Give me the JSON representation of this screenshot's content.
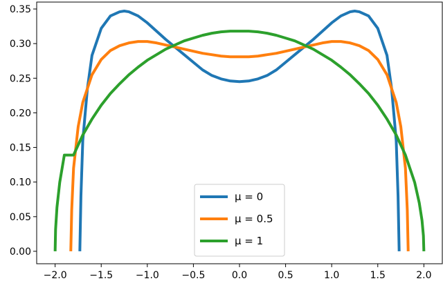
{
  "chart_data": {
    "type": "line",
    "title": "",
    "xlabel": "",
    "ylabel": "",
    "xlim": [
      -2.2,
      2.2
    ],
    "ylim": [
      -0.018,
      0.36
    ],
    "x_ticks": [
      -2.0,
      -1.5,
      -1.0,
      -0.5,
      0.0,
      0.5,
      1.0,
      1.5,
      2.0
    ],
    "x_tick_labels": [
      "−2.0",
      "−1.5",
      "−1.0",
      "−0.5",
      "0.0",
      "0.5",
      "1.0",
      "1.5",
      "2.0"
    ],
    "y_ticks": [
      0.0,
      0.05,
      0.1,
      0.15,
      0.2,
      0.25,
      0.3,
      0.35
    ],
    "y_tick_labels": [
      "0.00",
      "0.05",
      "0.10",
      "0.15",
      "0.20",
      "0.25",
      "0.30",
      "0.35"
    ],
    "grid": false,
    "legend_position": "bottom-center",
    "series": [
      {
        "name": "μ = 0",
        "color": "#1f77b4",
        "x": [
          -1.732,
          -1.72,
          -1.7,
          -1.65,
          -1.6,
          -1.5,
          -1.4,
          -1.3,
          -1.25,
          -1.2,
          -1.1,
          -1.0,
          -0.9,
          -0.8,
          -0.7,
          -0.6,
          -0.5,
          -0.4,
          -0.3,
          -0.2,
          -0.1,
          0.0,
          0.1,
          0.2,
          0.3,
          0.4,
          0.5,
          0.6,
          0.7,
          0.8,
          0.9,
          1.0,
          1.1,
          1.2,
          1.25,
          1.3,
          1.4,
          1.5,
          1.6,
          1.65,
          1.7,
          1.72,
          1.732
        ],
        "y": [
          0.0,
          0.08,
          0.16,
          0.235,
          0.283,
          0.322,
          0.34,
          0.346,
          0.347,
          0.346,
          0.34,
          0.33,
          0.318,
          0.306,
          0.295,
          0.284,
          0.273,
          0.262,
          0.254,
          0.249,
          0.246,
          0.245,
          0.246,
          0.249,
          0.254,
          0.262,
          0.273,
          0.284,
          0.295,
          0.306,
          0.318,
          0.33,
          0.34,
          0.346,
          0.347,
          0.346,
          0.34,
          0.322,
          0.283,
          0.235,
          0.16,
          0.08,
          0.0
        ]
      },
      {
        "name": "μ = 0.5",
        "color": "#ff7f0e",
        "x": [
          -1.83,
          -1.82,
          -1.8,
          -1.75,
          -1.7,
          -1.6,
          -1.5,
          -1.4,
          -1.3,
          -1.2,
          -1.1,
          -1.0,
          -0.9,
          -0.8,
          -0.7,
          -0.6,
          -0.5,
          -0.4,
          -0.3,
          -0.2,
          -0.1,
          0.0,
          0.1,
          0.2,
          0.3,
          0.4,
          0.5,
          0.6,
          0.7,
          0.8,
          0.9,
          1.0,
          1.1,
          1.2,
          1.3,
          1.4,
          1.5,
          1.6,
          1.7,
          1.75,
          1.8,
          1.82,
          1.83
        ],
        "y": [
          0.0,
          0.06,
          0.12,
          0.18,
          0.215,
          0.255,
          0.277,
          0.29,
          0.297,
          0.301,
          0.303,
          0.303,
          0.301,
          0.298,
          0.295,
          0.292,
          0.289,
          0.286,
          0.284,
          0.282,
          0.281,
          0.281,
          0.281,
          0.282,
          0.284,
          0.286,
          0.289,
          0.292,
          0.295,
          0.298,
          0.301,
          0.303,
          0.303,
          0.301,
          0.297,
          0.29,
          0.277,
          0.255,
          0.215,
          0.18,
          0.12,
          0.06,
          0.0
        ]
      },
      {
        "name": "μ = 1",
        "color": "#2ca02c",
        "x": [
          -2.0,
          -1.995,
          -1.98,
          -1.95,
          -1.9,
          -1.8,
          -1.7,
          -1.6,
          -1.5,
          -1.4,
          -1.3,
          -1.2,
          -1.1,
          -1.0,
          -0.9,
          -0.8,
          -0.7,
          -0.6,
          -0.5,
          -0.4,
          -0.3,
          -0.2,
          -0.1,
          0.0,
          0.1,
          0.2,
          0.3,
          0.4,
          0.5,
          0.6,
          0.7,
          0.8,
          0.9,
          1.0,
          1.1,
          1.2,
          1.3,
          1.4,
          1.5,
          1.6,
          1.7,
          1.8,
          1.9,
          1.95,
          1.98,
          1.995,
          2.0
        ],
        "y": [
          0.0,
          0.0318,
          0.0635,
          0.0996,
          0.139,
          0.139,
          0.168,
          0.191,
          0.211,
          0.228,
          0.242,
          0.255,
          0.266,
          0.276,
          0.284,
          0.292,
          0.298,
          0.304,
          0.308,
          0.312,
          0.315,
          0.317,
          0.318,
          0.318,
          0.318,
          0.317,
          0.315,
          0.312,
          0.308,
          0.304,
          0.298,
          0.292,
          0.284,
          0.276,
          0.266,
          0.255,
          0.242,
          0.228,
          0.211,
          0.191,
          0.168,
          0.139,
          0.0996,
          0.07,
          0.0444,
          0.0225,
          0.0
        ]
      }
    ]
  }
}
